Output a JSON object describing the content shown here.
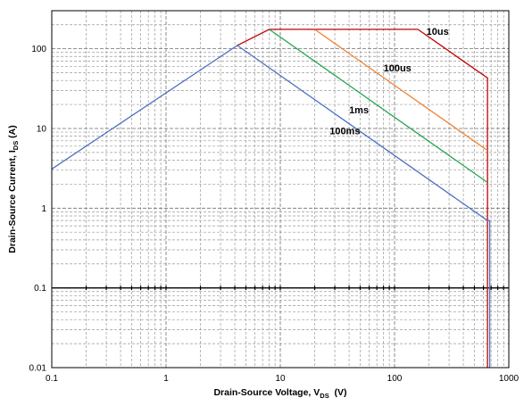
{
  "chart_data": {
    "type": "line",
    "xlabel": {
      "main": "Drain-Source Voltage, V",
      "sub": "DS",
      "unit": "  (V)"
    },
    "ylabel": {
      "main": "Drain-Source Current, I",
      "sub": "DS",
      "unit": " (A)"
    },
    "x_scale": "log",
    "y_scale": "log",
    "xlim": [
      0.1,
      1000
    ],
    "ylim": [
      0.01,
      300
    ],
    "grid": true,
    "x_ticks": [
      {
        "value": 0.1,
        "label": "0.1"
      },
      {
        "value": 1,
        "label": "1"
      },
      {
        "value": 10,
        "label": "10"
      },
      {
        "value": 100,
        "label": "100"
      },
      {
        "value": 1000,
        "label": "1000"
      }
    ],
    "y_ticks": [
      {
        "value": 0.01,
        "label": "0.01"
      },
      {
        "value": 0.1,
        "label": "0.1"
      },
      {
        "value": 1,
        "label": "1"
      },
      {
        "value": 10,
        "label": "10"
      },
      {
        "value": 100,
        "label": "100"
      }
    ],
    "reference_lines": [
      {
        "axis": "y",
        "value": 0.1,
        "color": "#000000"
      }
    ],
    "series": [
      {
        "name": "10us",
        "color": "#c00000",
        "label_at": [
          190,
          150
        ],
        "points": [
          [
            4.2,
            110
          ],
          [
            8,
            175
          ],
          [
            160,
            175
          ],
          [
            650,
            43
          ],
          [
            650,
            0.01
          ]
        ]
      },
      {
        "name": "100us",
        "color": "#f08030",
        "label_at": [
          80,
          52
        ],
        "points": [
          [
            20,
            175
          ],
          [
            650,
            5.3
          ]
        ]
      },
      {
        "name": "1ms",
        "color": "#22a550",
        "label_at": [
          40,
          15.5
        ],
        "points": [
          [
            8,
            175
          ],
          [
            650,
            2.1
          ]
        ]
      },
      {
        "name": "100ms",
        "color": "#4a72c0",
        "label_at": [
          27,
          8.5
        ],
        "points": [
          [
            0.1,
            3.1
          ],
          [
            4.2,
            110
          ],
          [
            650,
            0.7
          ],
          [
            680,
            0.7
          ],
          [
            680,
            0.01
          ]
        ]
      }
    ]
  }
}
